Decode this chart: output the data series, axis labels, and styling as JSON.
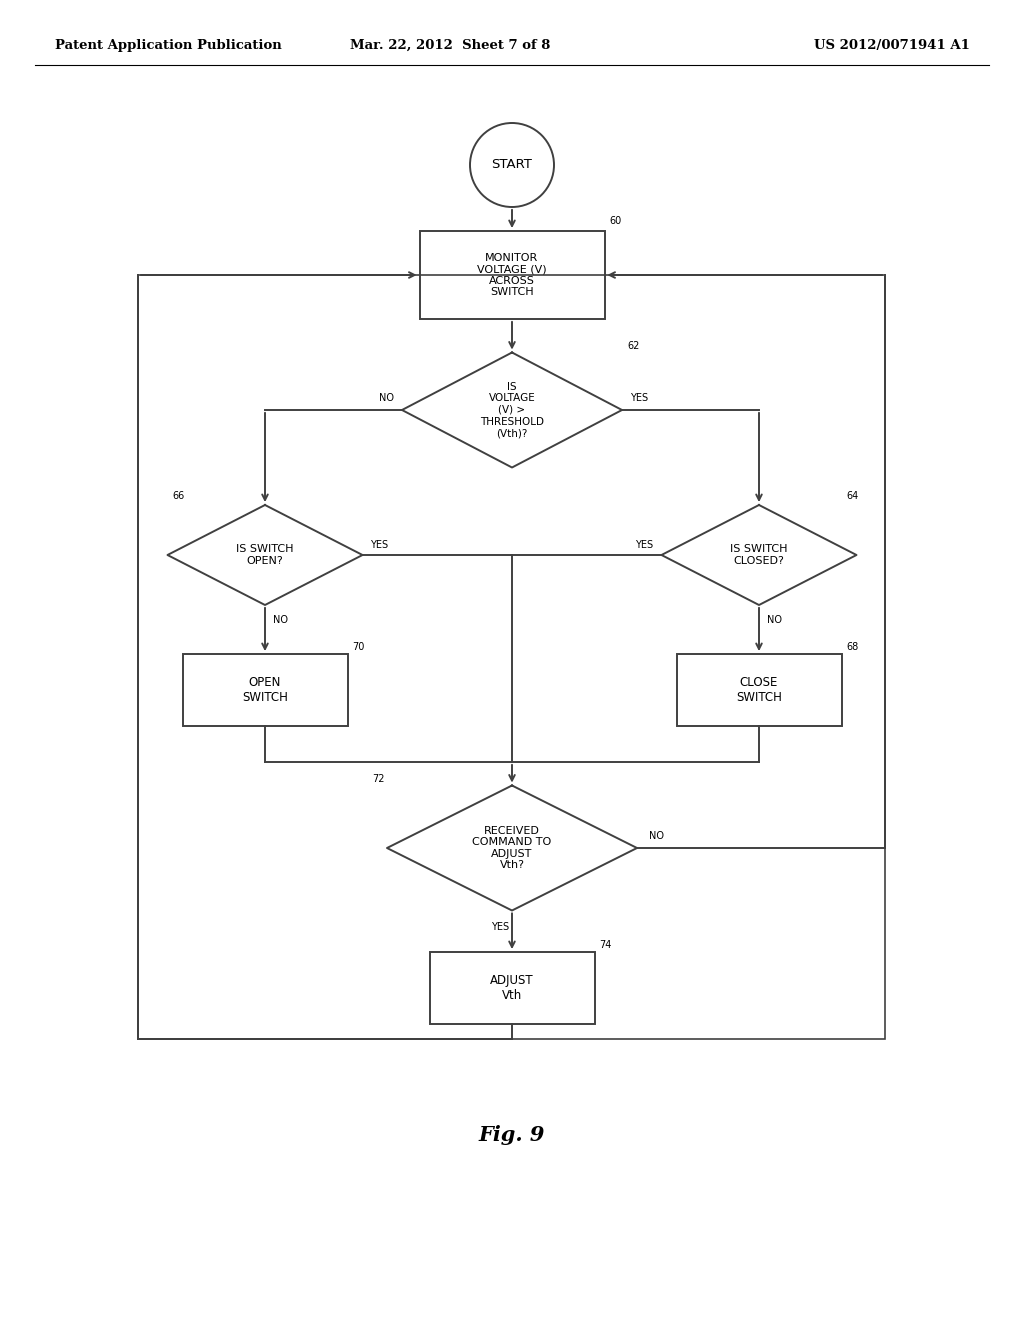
{
  "bg_color": "#ffffff",
  "header_left": "Patent Application Publication",
  "header_mid": "Mar. 22, 2012  Sheet 7 of 8",
  "header_right": "US 2012/0071941 A1",
  "fig_label": "Fig. 9",
  "line_color": "#404040",
  "line_width": 1.4,
  "font_size": 8.5,
  "header_font_size": 9.5,
  "fig_font_size": 15
}
